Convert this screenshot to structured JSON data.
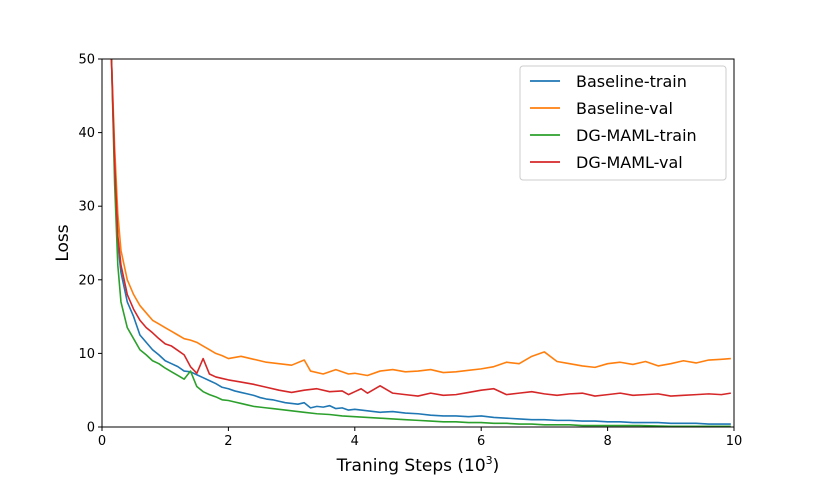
{
  "chart_data": {
    "type": "line",
    "title": "",
    "xlabel": "Traning Steps (10",
    "xlabel_sup": "3",
    "xlabel_close": ")",
    "ylabel": "Loss",
    "xlim": [
      0,
      10
    ],
    "ylim": [
      0,
      50
    ],
    "xticks": [
      0,
      2,
      4,
      6,
      8,
      10
    ],
    "yticks": [
      0,
      10,
      20,
      30,
      40,
      50
    ],
    "legend_position": "top-right",
    "series": [
      {
        "name": "Baseline-train",
        "color": "#1f77b4",
        "x": [
          0.15,
          0.2,
          0.25,
          0.3,
          0.4,
          0.5,
          0.6,
          0.7,
          0.8,
          0.9,
          1.0,
          1.1,
          1.2,
          1.3,
          1.4,
          1.5,
          1.6,
          1.7,
          1.8,
          1.9,
          2.0,
          2.1,
          2.2,
          2.3,
          2.4,
          2.5,
          2.6,
          2.7,
          2.8,
          2.9,
          3.0,
          3.1,
          3.2,
          3.3,
          3.4,
          3.5,
          3.6,
          3.7,
          3.8,
          3.9,
          4.0,
          4.2,
          4.4,
          4.6,
          4.8,
          5.0,
          5.2,
          5.4,
          5.6,
          5.8,
          6.0,
          6.2,
          6.4,
          6.6,
          6.8,
          7.0,
          7.2,
          7.4,
          7.6,
          7.8,
          8.0,
          8.2,
          8.4,
          8.6,
          8.8,
          9.0,
          9.2,
          9.4,
          9.6,
          9.8,
          9.95
        ],
        "y": [
          50,
          35,
          25,
          21,
          17,
          15,
          12.5,
          11.5,
          10.5,
          9.8,
          9.0,
          8.6,
          8.2,
          7.6,
          7.5,
          7.1,
          6.7,
          6.3,
          5.9,
          5.4,
          5.2,
          4.9,
          4.7,
          4.5,
          4.3,
          4.0,
          3.8,
          3.7,
          3.5,
          3.3,
          3.2,
          3.1,
          3.3,
          2.6,
          2.8,
          2.7,
          2.9,
          2.5,
          2.6,
          2.3,
          2.4,
          2.2,
          2.0,
          2.1,
          1.9,
          1.8,
          1.6,
          1.5,
          1.5,
          1.4,
          1.5,
          1.3,
          1.2,
          1.1,
          1.0,
          1.0,
          0.9,
          0.9,
          0.8,
          0.8,
          0.7,
          0.7,
          0.6,
          0.6,
          0.6,
          0.5,
          0.5,
          0.5,
          0.4,
          0.4,
          0.4
        ]
      },
      {
        "name": "Baseline-val",
        "color": "#ff7f0e",
        "x": [
          0.15,
          0.2,
          0.25,
          0.3,
          0.4,
          0.5,
          0.6,
          0.7,
          0.8,
          0.9,
          1.0,
          1.1,
          1.2,
          1.3,
          1.4,
          1.5,
          1.6,
          1.7,
          1.8,
          1.9,
          2.0,
          2.2,
          2.4,
          2.6,
          2.8,
          3.0,
          3.2,
          3.3,
          3.5,
          3.7,
          3.9,
          4.0,
          4.2,
          4.4,
          4.6,
          4.8,
          5.0,
          5.2,
          5.4,
          5.6,
          5.8,
          6.0,
          6.2,
          6.4,
          6.6,
          6.8,
          7.0,
          7.2,
          7.4,
          7.6,
          7.8,
          8.0,
          8.2,
          8.4,
          8.6,
          8.8,
          9.0,
          9.2,
          9.4,
          9.6,
          9.8,
          9.95
        ],
        "y": [
          50,
          38,
          29,
          24,
          20,
          18,
          16.5,
          15.5,
          14.5,
          14.0,
          13.5,
          13.0,
          12.5,
          12.0,
          11.8,
          11.5,
          11.0,
          10.5,
          10.0,
          9.7,
          9.3,
          9.6,
          9.2,
          8.8,
          8.6,
          8.4,
          9.1,
          7.6,
          7.2,
          7.8,
          7.2,
          7.3,
          7.0,
          7.6,
          7.8,
          7.5,
          7.6,
          7.8,
          7.4,
          7.5,
          7.7,
          7.9,
          8.2,
          8.8,
          8.6,
          9.6,
          10.2,
          8.9,
          8.6,
          8.3,
          8.1,
          8.6,
          8.8,
          8.5,
          8.9,
          8.3,
          8.6,
          9.0,
          8.7,
          9.1,
          9.2,
          9.3
        ]
      },
      {
        "name": "DG-MAML-train",
        "color": "#2ca02c",
        "x": [
          0.15,
          0.2,
          0.25,
          0.3,
          0.4,
          0.5,
          0.6,
          0.7,
          0.8,
          0.9,
          1.0,
          1.1,
          1.2,
          1.3,
          1.4,
          1.5,
          1.6,
          1.7,
          1.8,
          1.9,
          2.0,
          2.1,
          2.2,
          2.3,
          2.4,
          2.5,
          2.6,
          2.7,
          2.8,
          2.9,
          3.0,
          3.2,
          3.4,
          3.6,
          3.8,
          4.0,
          4.2,
          4.4,
          4.6,
          4.8,
          5.0,
          5.2,
          5.4,
          5.6,
          5.8,
          6.0,
          6.2,
          6.4,
          6.6,
          6.8,
          7.0,
          7.2,
          7.4,
          7.6,
          7.8,
          8.0,
          8.5,
          9.0,
          9.5,
          9.95
        ],
        "y": [
          50,
          33,
          22,
          17,
          13.5,
          12,
          10.5,
          9.8,
          9.0,
          8.6,
          8.0,
          7.5,
          7.0,
          6.5,
          7.6,
          5.5,
          4.8,
          4.4,
          4.1,
          3.7,
          3.6,
          3.4,
          3.2,
          3.0,
          2.8,
          2.7,
          2.6,
          2.5,
          2.4,
          2.3,
          2.2,
          2.0,
          1.8,
          1.7,
          1.5,
          1.4,
          1.3,
          1.2,
          1.1,
          1.0,
          0.9,
          0.8,
          0.7,
          0.7,
          0.6,
          0.6,
          0.5,
          0.5,
          0.4,
          0.4,
          0.3,
          0.3,
          0.3,
          0.2,
          0.2,
          0.2,
          0.2,
          0.1,
          0.1,
          0.1
        ]
      },
      {
        "name": "DG-MAML-val",
        "color": "#d62728",
        "x": [
          0.15,
          0.2,
          0.25,
          0.3,
          0.4,
          0.5,
          0.6,
          0.7,
          0.8,
          0.9,
          1.0,
          1.1,
          1.2,
          1.3,
          1.4,
          1.5,
          1.6,
          1.7,
          1.8,
          1.9,
          2.0,
          2.2,
          2.4,
          2.6,
          2.8,
          3.0,
          3.2,
          3.4,
          3.6,
          3.8,
          3.9,
          4.0,
          4.1,
          4.2,
          4.4,
          4.6,
          4.8,
          5.0,
          5.2,
          5.4,
          5.6,
          5.8,
          6.0,
          6.1,
          6.2,
          6.4,
          6.6,
          6.8,
          7.0,
          7.2,
          7.4,
          7.6,
          7.8,
          8.0,
          8.2,
          8.4,
          8.6,
          8.8,
          9.0,
          9.2,
          9.4,
          9.6,
          9.8,
          9.95
        ],
        "y": [
          50,
          36,
          26,
          22,
          18,
          16,
          14.5,
          13.5,
          12.8,
          12.0,
          11.3,
          11.0,
          10.4,
          9.8,
          8.2,
          7.3,
          9.3,
          7.2,
          6.8,
          6.6,
          6.4,
          6.1,
          5.8,
          5.4,
          5.0,
          4.7,
          5.0,
          5.2,
          4.8,
          4.9,
          4.4,
          4.8,
          5.2,
          4.6,
          5.6,
          4.6,
          4.4,
          4.2,
          4.6,
          4.3,
          4.4,
          4.7,
          5.0,
          5.1,
          5.2,
          4.4,
          4.6,
          4.8,
          4.5,
          4.3,
          4.5,
          4.6,
          4.2,
          4.4,
          4.6,
          4.3,
          4.4,
          4.5,
          4.2,
          4.3,
          4.4,
          4.5,
          4.4,
          4.6
        ]
      }
    ]
  }
}
